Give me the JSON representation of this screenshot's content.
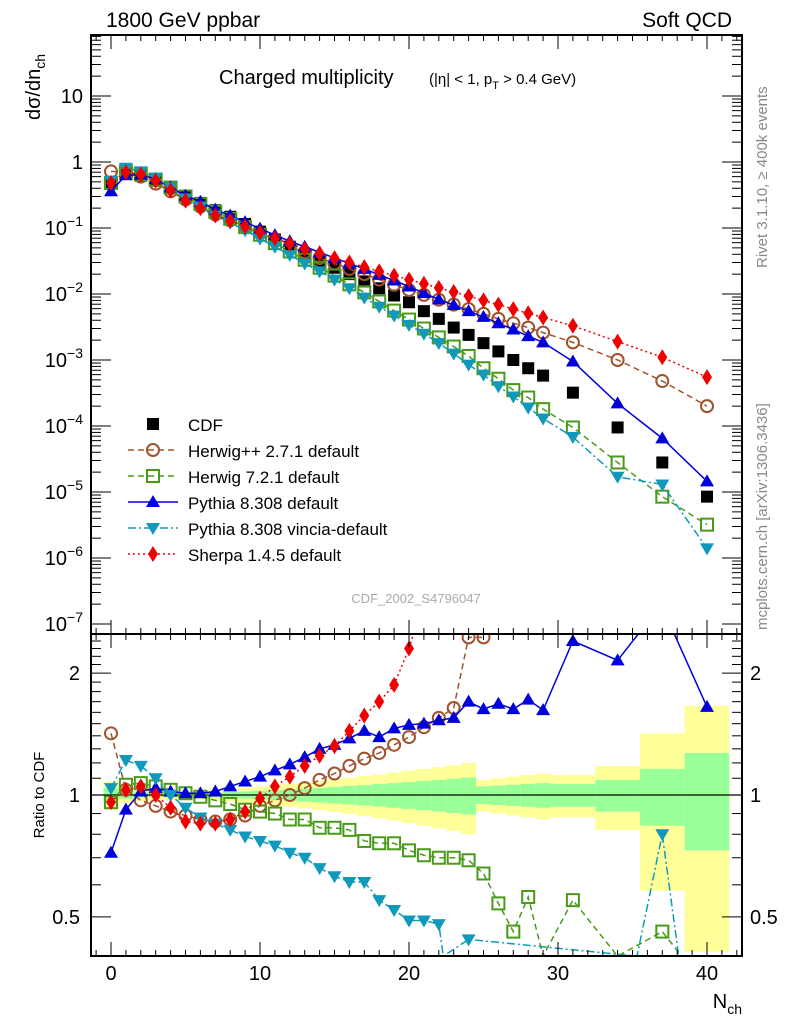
{
  "header": {
    "left_label": "1800 GeV ppbar",
    "right_label": "Soft QCD"
  },
  "side_labels": {
    "rivet": "Rivet 3.1.10, ≥ 400k events",
    "mcplots": "mcplots.cern.ch [arXiv:1306.3436]"
  },
  "analysis_id": "CDF_2002_S4796047",
  "chart_data": [
    {
      "type": "scatter",
      "panel": "main",
      "title": "Charged multiplicity",
      "title_suffix": "(|η| < 1, p_T > 0.4 GeV)",
      "xlabel": "N_ch",
      "ylabel": "dσ/dn_ch",
      "yscale": "log",
      "xlim": [
        -1.3,
        42.2
      ],
      "ylim": [
        7e-08,
        60
      ],
      "x_ticks": [
        0,
        10,
        20,
        30,
        40
      ],
      "y_tick_labels": [
        "10",
        "1",
        "10^-1",
        "10^-2",
        "10^-3",
        "10^-4",
        "10^-5",
        "10^-6",
        "10^-7"
      ],
      "y_tick_values": [
        10,
        1,
        0.1,
        0.01,
        0.001,
        0.0001,
        1e-05,
        1e-06,
        1e-07
      ],
      "legend_position": "bottom-left",
      "series": [
        {
          "name": "CDF",
          "color": "#000000",
          "marker": "square-filled",
          "line": "none",
          "x": [
            0,
            1,
            2,
            3,
            4,
            5,
            6,
            7,
            8,
            9,
            10,
            11,
            12,
            13,
            14,
            15,
            16,
            17,
            18,
            19,
            20,
            21,
            22,
            23,
            24,
            25,
            26,
            27,
            28,
            29,
            31,
            34,
            37,
            40
          ],
          "y": [
            0.5,
            0.68,
            0.62,
            0.52,
            0.4,
            0.3,
            0.24,
            0.185,
            0.148,
            0.115,
            0.088,
            0.067,
            0.052,
            0.04,
            0.032,
            0.025,
            0.02,
            0.0155,
            0.0122,
            0.0095,
            0.0075,
            0.0055,
            0.0042,
            0.0031,
            0.0024,
            0.0018,
            0.00135,
            0.001,
            0.00075,
            0.00058,
            0.00032,
            9.5e-05,
            2.8e-05,
            8.5e-06
          ]
        },
        {
          "name": "Herwig++ 2.7.1 default",
          "color": "#a0522d",
          "marker": "circle-open",
          "line": "dashed",
          "x": [
            0,
            1,
            2,
            3,
            4,
            5,
            6,
            7,
            8,
            9,
            10,
            11,
            12,
            13,
            14,
            15,
            16,
            17,
            18,
            19,
            20,
            21,
            22,
            23,
            24,
            25,
            26,
            27,
            28,
            29,
            31,
            34,
            37,
            40
          ],
          "y": [
            0.72,
            0.7,
            0.6,
            0.47,
            0.36,
            0.27,
            0.21,
            0.16,
            0.13,
            0.105,
            0.083,
            0.066,
            0.052,
            0.043,
            0.035,
            0.029,
            0.024,
            0.02,
            0.0165,
            0.0138,
            0.0115,
            0.0097,
            0.0082,
            0.0069,
            0.0059,
            0.005,
            0.0042,
            0.0036,
            0.0031,
            0.0026,
            0.00185,
            0.001,
            0.00048,
            0.0002
          ]
        },
        {
          "name": "Herwig 7.2.1 default",
          "color": "#4a9a1a",
          "marker": "square-open",
          "line": "dashed",
          "x": [
            0,
            1,
            2,
            3,
            4,
            5,
            6,
            7,
            8,
            9,
            10,
            11,
            12,
            13,
            14,
            15,
            16,
            17,
            18,
            19,
            20,
            21,
            22,
            23,
            24,
            25,
            26,
            27,
            28,
            29,
            31,
            34,
            37,
            40
          ],
          "y": [
            0.48,
            0.72,
            0.66,
            0.54,
            0.41,
            0.3,
            0.23,
            0.175,
            0.138,
            0.103,
            0.079,
            0.059,
            0.044,
            0.033,
            0.025,
            0.019,
            0.014,
            0.0106,
            0.0077,
            0.0056,
            0.0041,
            0.003,
            0.0022,
            0.0016,
            0.00115,
            0.00075,
            0.00052,
            0.00035,
            0.00027,
            0.00018,
            9.5e-05,
            2.8e-05,
            8.5e-06,
            3.2e-06
          ]
        },
        {
          "name": "Pythia 8.308 default",
          "color": "#0000dd",
          "marker": "triangle-up-filled",
          "line": "solid",
          "x": [
            0,
            1,
            2,
            3,
            4,
            5,
            6,
            7,
            8,
            9,
            10,
            11,
            12,
            13,
            14,
            15,
            16,
            17,
            18,
            19,
            20,
            21,
            22,
            23,
            24,
            25,
            26,
            27,
            28,
            29,
            31,
            34,
            37,
            40
          ],
          "y": [
            0.36,
            0.63,
            0.64,
            0.55,
            0.41,
            0.31,
            0.25,
            0.19,
            0.155,
            0.123,
            0.098,
            0.078,
            0.063,
            0.052,
            0.043,
            0.035,
            0.029,
            0.024,
            0.0195,
            0.016,
            0.013,
            0.0103,
            0.0083,
            0.0068,
            0.0055,
            0.0045,
            0.0036,
            0.0029,
            0.0023,
            0.00185,
            0.00095,
            0.00022,
            6.5e-05,
            1.45e-05
          ]
        },
        {
          "name": "Pythia 8.308 vincia-default",
          "color": "#1199bb",
          "marker": "triangle-down-filled",
          "line": "dash-dot",
          "x": [
            0,
            1,
            2,
            3,
            4,
            5,
            6,
            7,
            8,
            9,
            10,
            11,
            12,
            13,
            14,
            15,
            16,
            17,
            18,
            19,
            20,
            21,
            22,
            23,
            24,
            25,
            26,
            27,
            28,
            29,
            31,
            34,
            37,
            40
          ],
          "y": [
            0.52,
            0.82,
            0.72,
            0.58,
            0.41,
            0.28,
            0.21,
            0.155,
            0.12,
            0.092,
            0.069,
            0.052,
            0.039,
            0.029,
            0.022,
            0.0165,
            0.0122,
            0.0088,
            0.0064,
            0.0047,
            0.0034,
            0.0025,
            0.0018,
            0.00125,
            0.00085,
            0.0006,
            0.0004,
            0.00028,
            0.00019,
            0.00013,
            6.8e-05,
            1.7e-05,
            1.3e-05,
            1.4e-06
          ]
        },
        {
          "name": "Sherpa 1.4.5 default",
          "color": "#ee0000",
          "marker": "diamond-filled",
          "line": "dotted",
          "x": [
            0,
            1,
            2,
            3,
            4,
            5,
            6,
            7,
            8,
            9,
            10,
            11,
            12,
            13,
            14,
            15,
            16,
            17,
            18,
            19,
            20,
            21,
            22,
            23,
            24,
            25,
            26,
            27,
            28,
            29,
            31,
            34,
            37,
            40
          ],
          "y": [
            0.48,
            0.7,
            0.65,
            0.52,
            0.37,
            0.26,
            0.2,
            0.155,
            0.128,
            0.105,
            0.086,
            0.07,
            0.058,
            0.048,
            0.041,
            0.035,
            0.03,
            0.0255,
            0.022,
            0.019,
            0.0165,
            0.0143,
            0.0124,
            0.0107,
            0.0093,
            0.008,
            0.0069,
            0.0059,
            0.0051,
            0.0044,
            0.0033,
            0.0019,
            0.0011,
            0.00055
          ]
        }
      ]
    },
    {
      "type": "scatter",
      "panel": "ratio",
      "ylabel": "Ratio to CDF",
      "xlabel": "N_ch",
      "yscale": "log",
      "xlim": [
        -1.3,
        42.2
      ],
      "ylim": [
        0.4,
        2.5
      ],
      "x_ticks": [
        0,
        10,
        20,
        30,
        40
      ],
      "y_tick_labels": [
        "0.5",
        "1",
        "2"
      ],
      "y_tick_values": [
        0.5,
        1,
        2
      ],
      "reference_line": 1,
      "uncertainty_bands": {
        "inner_color": "#99ff99",
        "outer_color": "#ffff99",
        "edges": [
          -0.5,
          0.5,
          1.5,
          2.5,
          3.5,
          4.5,
          5.5,
          6.5,
          7.5,
          8.5,
          9.5,
          10.5,
          11.5,
          12.5,
          13.5,
          14.5,
          15.5,
          16.5,
          17.5,
          18.5,
          19.5,
          20.5,
          21.5,
          22.5,
          23.5,
          24.5,
          25.5,
          26.5,
          27.5,
          28.5,
          29.5,
          32.5,
          35.5,
          38.5,
          41.5
        ],
        "inner_half_width": [
          0.04,
          0.02,
          0.015,
          0.012,
          0.01,
          0.01,
          0.012,
          0.014,
          0.017,
          0.02,
          0.024,
          0.028,
          0.032,
          0.037,
          0.042,
          0.047,
          0.053,
          0.058,
          0.064,
          0.07,
          0.076,
          0.083,
          0.09,
          0.097,
          0.105,
          0.05,
          0.055,
          0.06,
          0.065,
          0.07,
          0.065,
          0.09,
          0.16,
          0.27
        ],
        "outer_half_width": [
          0.08,
          0.045,
          0.035,
          0.028,
          0.024,
          0.024,
          0.027,
          0.031,
          0.036,
          0.042,
          0.049,
          0.057,
          0.065,
          0.073,
          0.082,
          0.092,
          0.102,
          0.113,
          0.124,
          0.136,
          0.148,
          0.16,
          0.172,
          0.185,
          0.2,
          0.09,
          0.1,
          0.11,
          0.12,
          0.13,
          0.12,
          0.18,
          0.42,
          0.66
        ]
      },
      "series": [
        {
          "name": "Herwig++ 2.7.1 default",
          "color": "#a0522d",
          "marker": "circle-open",
          "line": "dashed",
          "x": [
            0,
            1,
            2,
            3,
            4,
            5,
            6,
            7,
            8,
            9,
            10,
            11,
            12,
            13,
            14,
            15,
            16,
            17,
            18,
            19,
            20,
            21,
            22,
            23,
            24,
            25
          ],
          "y": [
            1.42,
            1.03,
            0.97,
            0.94,
            0.91,
            0.89,
            0.87,
            0.86,
            0.87,
            0.89,
            0.94,
            0.97,
            1.0,
            1.04,
            1.09,
            1.13,
            1.18,
            1.23,
            1.27,
            1.33,
            1.39,
            1.47,
            1.55,
            1.64,
            2.45,
            2.45
          ]
        },
        {
          "name": "Herwig 7.2.1 default",
          "color": "#4a9a1a",
          "marker": "square-open",
          "line": "dashed",
          "x": [
            0,
            1,
            2,
            3,
            4,
            5,
            6,
            7,
            8,
            9,
            10,
            11,
            12,
            13,
            14,
            15,
            16,
            17,
            18,
            19,
            20,
            21,
            22,
            23,
            24,
            25,
            26,
            27,
            28,
            29,
            31,
            34,
            37,
            38.3
          ],
          "y": [
            0.96,
            1.06,
            1.07,
            1.05,
            1.03,
            1.01,
            0.99,
            0.97,
            0.95,
            0.92,
            0.91,
            0.9,
            0.87,
            0.87,
            0.83,
            0.83,
            0.82,
            0.77,
            0.76,
            0.76,
            0.73,
            0.71,
            0.7,
            0.7,
            0.69,
            0.64,
            0.54,
            0.46,
            0.56,
            0.4,
            0.55,
            0.4,
            0.46,
            0.4
          ]
        },
        {
          "name": "Pythia 8.308 default",
          "color": "#0000dd",
          "marker": "triangle-up-filled",
          "line": "solid",
          "x": [
            0,
            1,
            2,
            3,
            4,
            5,
            6,
            7,
            8,
            9,
            10,
            11,
            12,
            13,
            14,
            15,
            16,
            17,
            18,
            19,
            20,
            21,
            22,
            23,
            24,
            25,
            26,
            27,
            28,
            29,
            31,
            34,
            35.4,
            37.8,
            40
          ],
          "y": [
            0.72,
            0.92,
            1.02,
            1.04,
            1.02,
            1.01,
            1.01,
            1.02,
            1.05,
            1.08,
            1.11,
            1.15,
            1.19,
            1.24,
            1.3,
            1.33,
            1.38,
            1.44,
            1.39,
            1.46,
            1.49,
            1.5,
            1.53,
            1.55,
            1.7,
            1.63,
            1.68,
            1.63,
            1.72,
            1.62,
            2.4,
            2.15,
            2.5,
            2.5,
            1.65
          ]
        },
        {
          "name": "Pythia 8.308 vincia-default",
          "color": "#1199bb",
          "marker": "triangle-down-filled",
          "line": "dash-dot",
          "x": [
            0,
            1,
            2,
            3,
            4,
            5,
            6,
            7,
            8,
            9,
            10,
            11,
            12,
            13,
            14,
            15,
            16,
            17,
            18,
            19,
            20,
            21,
            22,
            22.3,
            24,
            35.3,
            37,
            38.1
          ],
          "y": [
            1.04,
            1.22,
            1.18,
            1.1,
            1.0,
            0.93,
            0.88,
            0.85,
            0.82,
            0.79,
            0.77,
            0.75,
            0.72,
            0.7,
            0.66,
            0.63,
            0.61,
            0.61,
            0.55,
            0.52,
            0.49,
            0.49,
            0.48,
            0.4,
            0.44,
            0.4,
            0.8,
            0.4
          ]
        },
        {
          "name": "Sherpa 1.4.5 default",
          "color": "#ee0000",
          "marker": "diamond-filled",
          "line": "dotted",
          "x": [
            0,
            1,
            2,
            3,
            4,
            5,
            6,
            7,
            8,
            9,
            10,
            11,
            12,
            13,
            14,
            15,
            16,
            17,
            18,
            19,
            20,
            20.3
          ],
          "y": [
            0.96,
            1.03,
            1.05,
            1.0,
            0.93,
            0.86,
            0.85,
            0.85,
            0.87,
            0.91,
            0.98,
            1.05,
            1.11,
            1.18,
            1.25,
            1.32,
            1.44,
            1.57,
            1.7,
            1.87,
            2.3,
            2.5
          ]
        }
      ]
    }
  ]
}
